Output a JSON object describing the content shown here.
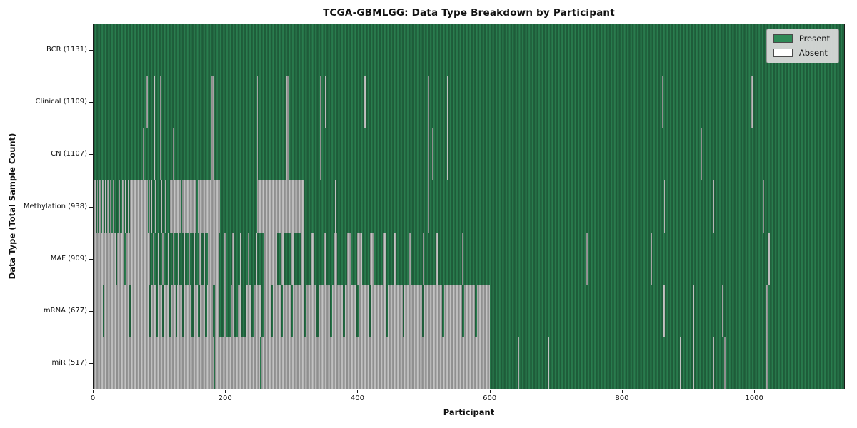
{
  "chart_data": {
    "type": "heatmap",
    "title": "TCGA-GBMLGG: Data Type Breakdown by Participant",
    "xlabel": "Participant",
    "ylabel": "Data Type (Total Sample Count)",
    "x_axis": {
      "min": 0,
      "max": 1137,
      "ticks": [
        0,
        200,
        400,
        600,
        800,
        1000
      ]
    },
    "grid": false,
    "legend": {
      "position": "upper right",
      "present": {
        "label": "Present",
        "color": "#2e8b57"
      },
      "absent": {
        "label": "Absent",
        "color": "#ffffff"
      }
    },
    "colors": {
      "present_fill": "#2e8b57",
      "absent_fill": "#d9d9d9",
      "bar_edge_dark": "#1f4a33",
      "legend_bg": "#d8d8d8"
    },
    "rows": [
      {
        "name": "BCR",
        "label": "BCR (1131)",
        "total": 1131,
        "absent_intervals": []
      },
      {
        "name": "Clinical",
        "label": "Clinical (1109)",
        "total": 1109,
        "absent_intervals": [
          [
            71,
            73
          ],
          [
            80,
            82
          ],
          [
            92,
            93
          ],
          [
            101,
            103
          ],
          [
            179,
            182
          ],
          [
            248,
            249
          ],
          [
            292,
            295
          ],
          [
            343,
            345
          ],
          [
            351,
            352
          ],
          [
            410,
            412
          ],
          [
            507,
            509
          ],
          [
            536,
            538
          ],
          [
            861,
            863
          ],
          [
            996,
            998
          ]
        ]
      },
      {
        "name": "CN",
        "label": "CN (1107)",
        "total": 1107,
        "absent_intervals": [
          [
            71,
            73
          ],
          [
            75,
            77
          ],
          [
            92,
            93
          ],
          [
            101,
            103
          ],
          [
            120,
            122
          ],
          [
            179,
            182
          ],
          [
            248,
            249
          ],
          [
            292,
            295
          ],
          [
            343,
            345
          ],
          [
            507,
            509
          ],
          [
            513,
            515
          ],
          [
            536,
            538
          ],
          [
            920,
            922
          ],
          [
            998,
            1000
          ]
        ]
      },
      {
        "name": "Methylation",
        "label": "Methylation (938)",
        "total": 938,
        "absent_intervals": [
          [
            1,
            3
          ],
          [
            5,
            7
          ],
          [
            9,
            11
          ],
          [
            13,
            15
          ],
          [
            17,
            19
          ],
          [
            21,
            23
          ],
          [
            25,
            27
          ],
          [
            29,
            31
          ],
          [
            33,
            35
          ],
          [
            38,
            40
          ],
          [
            43,
            45
          ],
          [
            48,
            50
          ],
          [
            52,
            54
          ],
          [
            55,
            82
          ],
          [
            84,
            85
          ],
          [
            88,
            89
          ],
          [
            93,
            94
          ],
          [
            98,
            99
          ],
          [
            103,
            104
          ],
          [
            108,
            109
          ],
          [
            116,
            132
          ],
          [
            134,
            156
          ],
          [
            158,
            191
          ],
          [
            248,
            318
          ],
          [
            366,
            367
          ],
          [
            507,
            508
          ],
          [
            548,
            550
          ],
          [
            864,
            865
          ],
          [
            938,
            940
          ],
          [
            1014,
            1016
          ]
        ]
      },
      {
        "name": "MAF",
        "label": "MAF (909)",
        "total": 909,
        "absent_intervals": [
          [
            0,
            18
          ],
          [
            20,
            34
          ],
          [
            36,
            47
          ],
          [
            49,
            86
          ],
          [
            90,
            92
          ],
          [
            97,
            99
          ],
          [
            104,
            106
          ],
          [
            112,
            114
          ],
          [
            120,
            122
          ],
          [
            128,
            130
          ],
          [
            136,
            138
          ],
          [
            144,
            146
          ],
          [
            152,
            154
          ],
          [
            160,
            162
          ],
          [
            167,
            169
          ],
          [
            173,
            190
          ],
          [
            198,
            200
          ],
          [
            210,
            212
          ],
          [
            222,
            224
          ],
          [
            234,
            236
          ],
          [
            246,
            248
          ],
          [
            259,
            278
          ],
          [
            284,
            289
          ],
          [
            299,
            304
          ],
          [
            314,
            318
          ],
          [
            329,
            334
          ],
          [
            348,
            353
          ],
          [
            364,
            369
          ],
          [
            384,
            389
          ],
          [
            399,
            407
          ],
          [
            419,
            424
          ],
          [
            438,
            443
          ],
          [
            454,
            459
          ],
          [
            478,
            480
          ],
          [
            499,
            501
          ],
          [
            519,
            521
          ],
          [
            558,
            560
          ],
          [
            747,
            749
          ],
          [
            844,
            846
          ],
          [
            1022,
            1024
          ]
        ]
      },
      {
        "name": "mRNA",
        "label": "mRNA (677)",
        "total": 677,
        "absent_intervals": [
          [
            0,
            14
          ],
          [
            16,
            53
          ],
          [
            56,
            84
          ],
          [
            87,
            94
          ],
          [
            97,
            104
          ],
          [
            107,
            114
          ],
          [
            117,
            124
          ],
          [
            127,
            134
          ],
          [
            137,
            148
          ],
          [
            151,
            158
          ],
          [
            161,
            169
          ],
          [
            172,
            181
          ],
          [
            184,
            190
          ],
          [
            197,
            201
          ],
          [
            208,
            212
          ],
          [
            219,
            223
          ],
          [
            230,
            239
          ],
          [
            242,
            254
          ],
          [
            257,
            269
          ],
          [
            272,
            284
          ],
          [
            287,
            299
          ],
          [
            302,
            318
          ],
          [
            321,
            338
          ],
          [
            341,
            358
          ],
          [
            361,
            378
          ],
          [
            381,
            398
          ],
          [
            401,
            418
          ],
          [
            421,
            443
          ],
          [
            446,
            468
          ],
          [
            471,
            498
          ],
          [
            501,
            528
          ],
          [
            531,
            558
          ],
          [
            561,
            578
          ],
          [
            581,
            600
          ],
          [
            863,
            865
          ],
          [
            908,
            910
          ],
          [
            952,
            954
          ],
          [
            1019,
            1021
          ]
        ]
      },
      {
        "name": "miR",
        "label": "miR (517)",
        "total": 517,
        "absent_intervals": [
          [
            0,
            182
          ],
          [
            184,
            252
          ],
          [
            254,
            600
          ],
          [
            643,
            645
          ],
          [
            688,
            690
          ],
          [
            888,
            890
          ],
          [
            908,
            910
          ],
          [
            938,
            940
          ],
          [
            955,
            957
          ],
          [
            1018,
            1022
          ]
        ]
      }
    ]
  }
}
